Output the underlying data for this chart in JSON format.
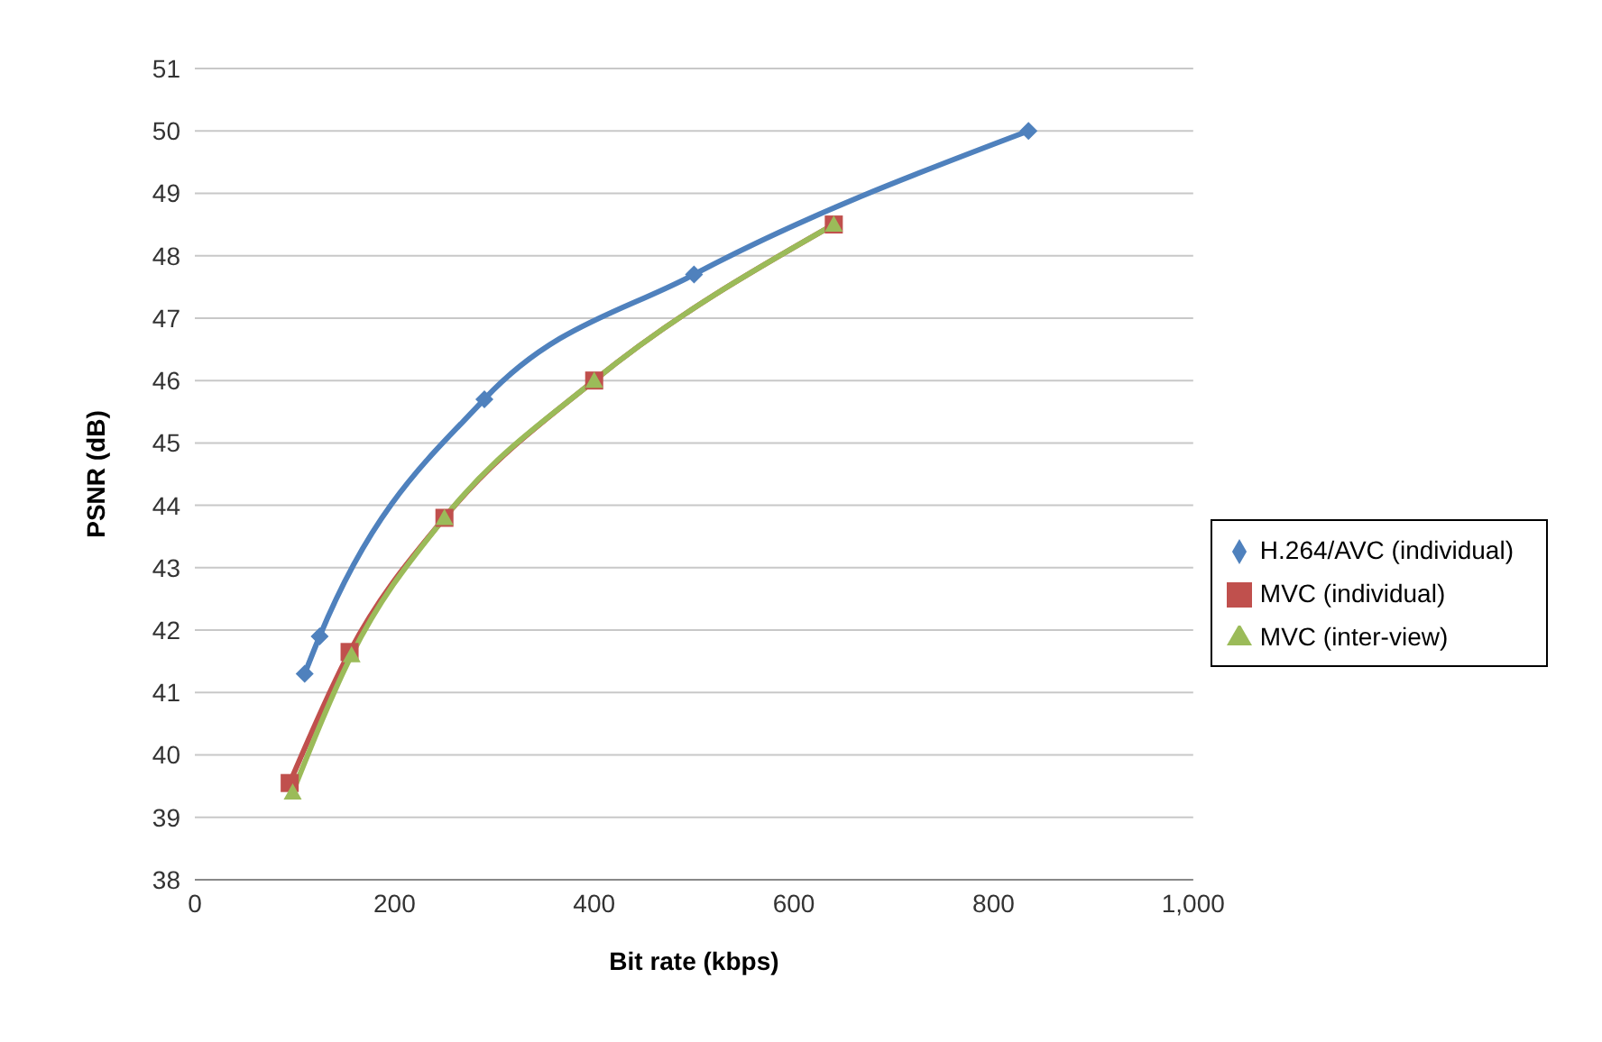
{
  "chart_data": {
    "type": "line",
    "xlabel": "Bit rate (kbps)",
    "ylabel": "PSNR (dB)",
    "xlim": [
      0,
      1000
    ],
    "xticks": [
      0,
      200,
      400,
      600,
      800,
      {
        "value": 1000,
        "label": "1,000"
      }
    ],
    "ylim": [
      38,
      51
    ],
    "yticks": [
      38,
      39,
      40,
      41,
      42,
      43,
      44,
      45,
      46,
      47,
      48,
      49,
      50,
      51
    ],
    "grid": "y",
    "legend": "right",
    "line_style": "solid",
    "series": [
      {
        "name": "H.264/AVC (individual)",
        "color": "#4f81bd",
        "marker": "diamond",
        "x": [
          110,
          125,
          290,
          500,
          835
        ],
        "values": [
          41.3,
          41.9,
          45.7,
          47.7,
          50.0
        ]
      },
      {
        "name": "MVC (individual)",
        "color": "#c0504d",
        "marker": "square",
        "x": [
          95,
          155,
          250,
          400,
          640
        ],
        "values": [
          39.55,
          41.65,
          43.8,
          46.0,
          48.5
        ]
      },
      {
        "name": "MVC (inter-view)",
        "color": "#9bbb59",
        "marker": "triangle",
        "x": [
          98,
          157,
          250,
          400,
          640
        ],
        "values": [
          39.4,
          41.6,
          43.8,
          46.0,
          48.5
        ]
      }
    ]
  }
}
